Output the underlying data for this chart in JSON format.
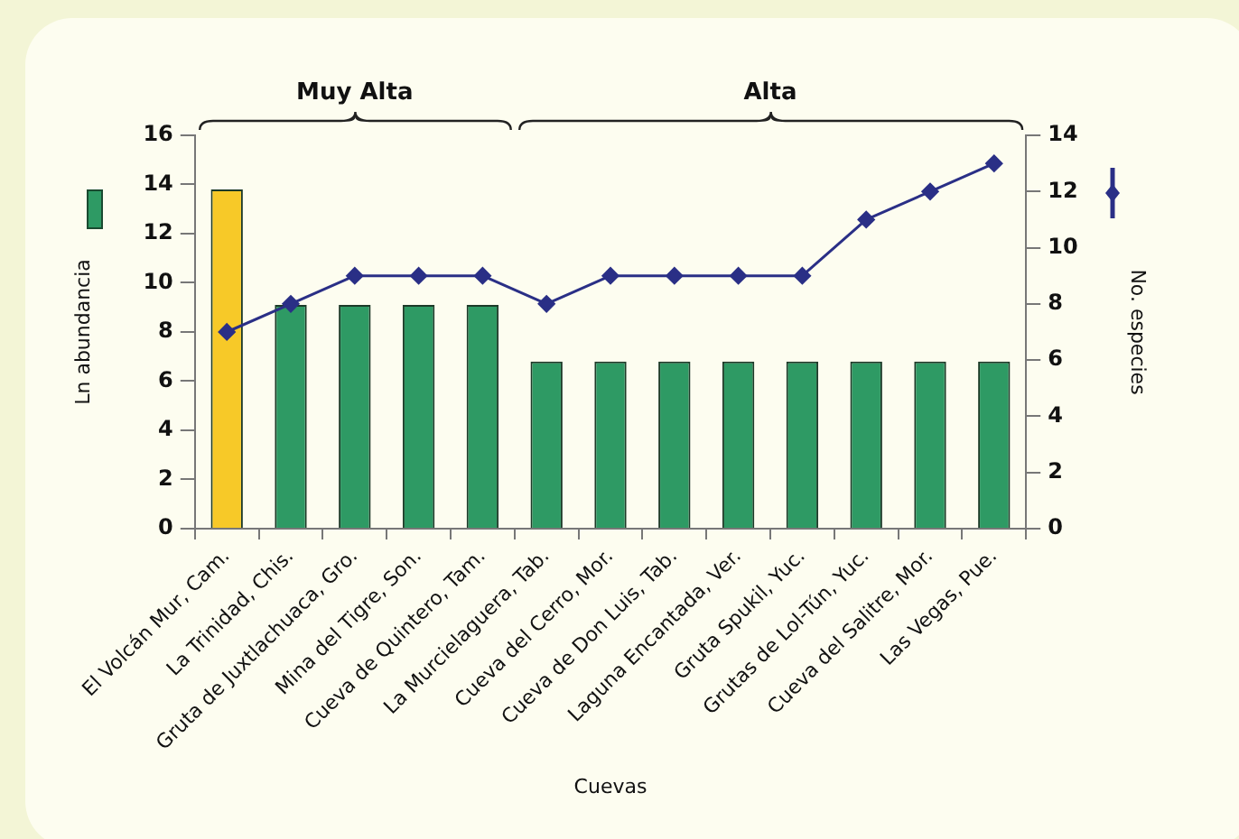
{
  "chart_data": {
    "type": "bar",
    "xlabel": "Cuevas",
    "ylabel": "Ln abundancia",
    "y2label": "No. especies",
    "categories": [
      "El Volcán Mur, Cam.",
      "La Trinidad, Chis.",
      "Gruta de Juxtlachuaca, Gro.",
      "Mina del Tigre, Son.",
      "Cueva de Quintero, Tam.",
      "La Murcielaguera, Tab.",
      "Cueva del Cerro, Mor.",
      "Cueva de Don Luis, Tab.",
      "Laguna Encantada, Ver.",
      "Gruta Spukil, Yuc.",
      "Grutas de Lol-Tún, Yuc.",
      "Cueva del Salitre, Mor.",
      "Las Vegas, Pue."
    ],
    "series": [
      {
        "colors": [
          "#f7c928",
          "#2e9a64",
          "#2e9a64",
          "#2e9a64",
          "#2e9a64",
          "#2e9a64",
          "#2e9a64",
          "#2e9a64",
          "#2e9a64",
          "#2e9a64",
          "#2e9a64",
          "#2e9a64",
          "#2e9a64"
        ],
        "values": [
          13.8,
          9.1,
          9.1,
          9.1,
          9.1,
          6.8,
          6.8,
          6.8,
          6.8,
          6.8,
          6.8,
          6.8,
          6.8
        ]
      },
      {
        "type": "line",
        "axis": "y2",
        "color": "#2a2f86",
        "marker": "diamond",
        "values": [
          7,
          8,
          9,
          9,
          9,
          8,
          9,
          9,
          9,
          9,
          11,
          12,
          13
        ]
      }
    ],
    "ylim": [
      0,
      16
    ],
    "yticks": [
      0,
      2,
      4,
      6,
      8,
      10,
      12,
      14,
      16
    ],
    "y2lim": [
      0,
      14
    ],
    "y2ticks": [
      0,
      2,
      4,
      6,
      8,
      10,
      12,
      14
    ],
    "annotations": [
      "Muy Alta",
      "Alta"
    ],
    "grid": false,
    "legend": false
  }
}
